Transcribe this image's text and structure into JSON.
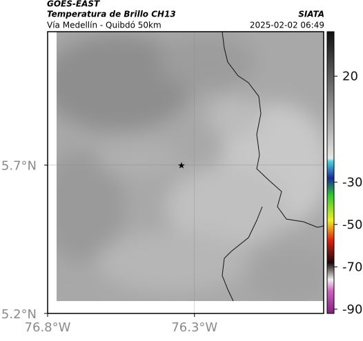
{
  "header": {
    "source": "GOES-EAST",
    "title": "Temperatura de Brillo CH13",
    "agency": "SIATA",
    "subtitle": "Vía Medellín - Quibdó 50km",
    "datetime": "2025-02-02 06:49"
  },
  "map": {
    "xlim": [
      -76.8,
      -75.86
    ],
    "ylim": [
      5.2,
      6.15
    ],
    "xticks": [
      {
        "value": -76.8,
        "label": "76.8°W"
      },
      {
        "value": -76.3,
        "label": "76.3°W"
      }
    ],
    "yticks": [
      {
        "value": 5.2,
        "label": "5.2°N"
      },
      {
        "value": 5.7,
        "label": "5.7°N"
      }
    ]
  },
  "colorbar": {
    "lim": [
      41,
      -92
    ],
    "ticks": [
      20,
      -30,
      -50,
      -70,
      -90
    ]
  }
}
